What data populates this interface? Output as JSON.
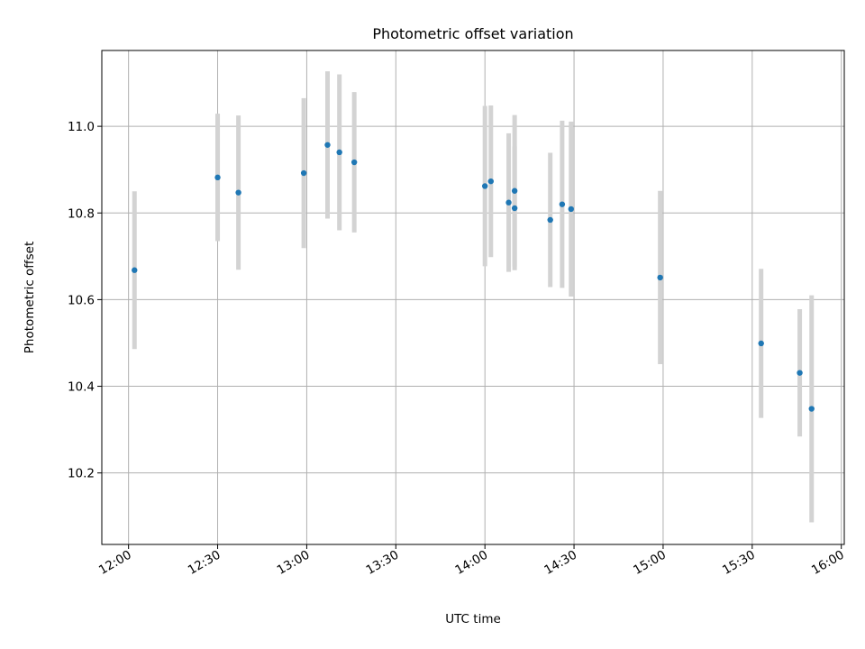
{
  "chart_data": {
    "type": "scatter",
    "title": "Photometric offset variation",
    "xlabel": "UTC time",
    "ylabel": "Photometric offset",
    "x_ticks": [
      "12:00",
      "12:30",
      "13:00",
      "13:30",
      "14:00",
      "14:30",
      "15:00",
      "15:30",
      "16:00"
    ],
    "y_ticks": [
      "10.2",
      "10.4",
      "10.6",
      "10.8",
      "11.0"
    ],
    "xlim": [
      "11:51",
      "16:01"
    ],
    "ylim": [
      10.035,
      11.175
    ],
    "grid": true,
    "colors": {
      "points": "#1f77b4",
      "error_bars": "#d3d3d3",
      "grid": "#b0b0b0"
    },
    "series": [
      {
        "points": [
          {
            "x": "12:02",
            "y": 10.668,
            "yerr": 0.182
          },
          {
            "x": "12:30",
            "y": 10.882,
            "yerr": 0.147
          },
          {
            "x": "12:37",
            "y": 10.847,
            "yerr": 0.178
          },
          {
            "x": "12:59",
            "y": 10.892,
            "yerr": 0.173
          },
          {
            "x": "13:07",
            "y": 10.957,
            "yerr": 0.17
          },
          {
            "x": "13:11",
            "y": 10.94,
            "yerr": 0.18
          },
          {
            "x": "13:16",
            "y": 10.917,
            "yerr": 0.162
          },
          {
            "x": "14:00",
            "y": 10.862,
            "yerr": 0.185
          },
          {
            "x": "14:02",
            "y": 10.873,
            "yerr": 0.175
          },
          {
            "x": "14:08",
            "y": 10.824,
            "yerr": 0.16
          },
          {
            "x": "14:10",
            "y": 10.851,
            "yerr": 0.175
          },
          {
            "x": "14:10",
            "y": 10.811,
            "yerr": 0.143
          },
          {
            "x": "14:22",
            "y": 10.784,
            "yerr": 0.155
          },
          {
            "x": "14:26",
            "y": 10.82,
            "yerr": 0.193
          },
          {
            "x": "14:29",
            "y": 10.809,
            "yerr": 0.202
          },
          {
            "x": "14:59",
            "y": 10.651,
            "yerr": 0.2
          },
          {
            "x": "15:33",
            "y": 10.499,
            "yerr": 0.172
          },
          {
            "x": "15:46",
            "y": 10.431,
            "yerr": 0.147
          },
          {
            "x": "15:50",
            "y": 10.348,
            "yerr": 0.262
          }
        ]
      }
    ]
  }
}
